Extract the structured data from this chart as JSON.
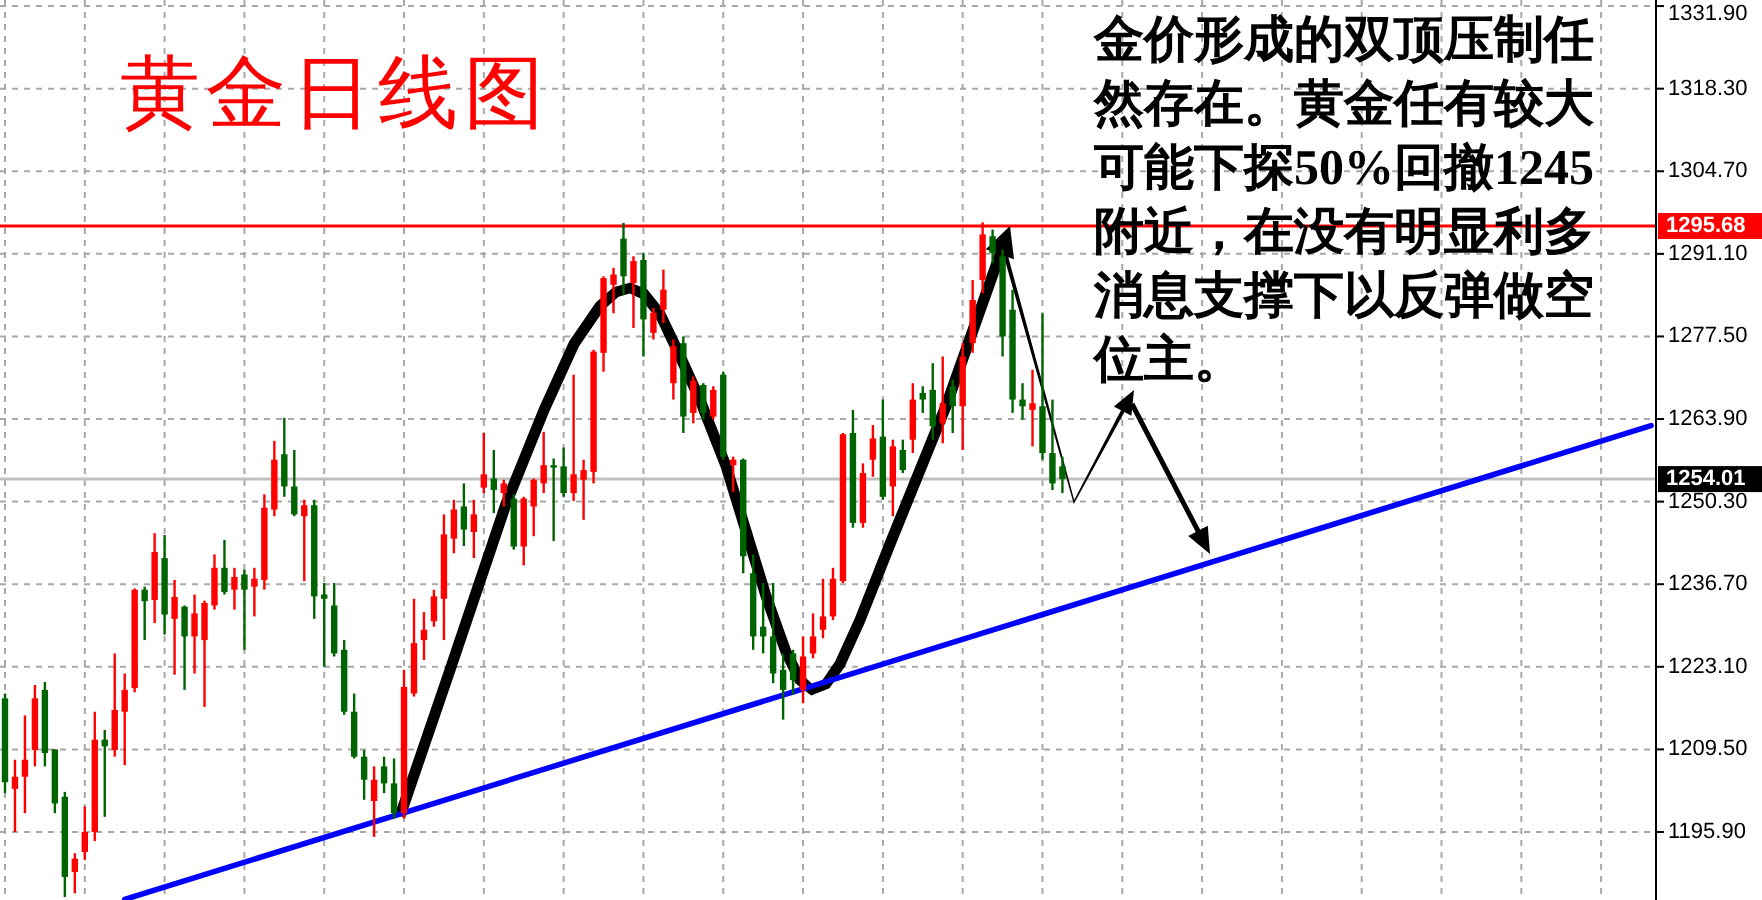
{
  "chart_data": {
    "type": "candlestick",
    "title": "黄金日线图",
    "annotations": [
      "金价形成的双顶压制任然存在。黄金任有较大可能下探50%回撤1245附近，在没有明显利多消息支撑下以反弹做空位主。"
    ],
    "categories": [
      null,
      null,
      null,
      null,
      null,
      null,
      null,
      null,
      null,
      null,
      null,
      null,
      null,
      null,
      null,
      null,
      null,
      null,
      null,
      null,
      null,
      null,
      null,
      null,
      null,
      null,
      null,
      null,
      null,
      null,
      null,
      null,
      null,
      null,
      null,
      null,
      null,
      null,
      null,
      null,
      null,
      null,
      null,
      null,
      null,
      null,
      null,
      null,
      null,
      null,
      null,
      null,
      null,
      null,
      null,
      null,
      null,
      null,
      null,
      null,
      null,
      null,
      null,
      null,
      null,
      null,
      null,
      null,
      null,
      null,
      null,
      null,
      null,
      null,
      null,
      null,
      null,
      null,
      null,
      null,
      null,
      null,
      null,
      null,
      null,
      null,
      null,
      null,
      null,
      null,
      null,
      null,
      null,
      null,
      null,
      null,
      null,
      null,
      null,
      null,
      null,
      null,
      null,
      null,
      null,
      null,
      null,
      null,
      null,
      null,
      null,
      null,
      null,
      null,
      null,
      null,
      null,
      null,
      null,
      null,
      null,
      null,
      null,
      null,
      null,
      null,
      null,
      null,
      null,
      null,
      null,
      null,
      null,
      null,
      null,
      null,
      null,
      null,
      null,
      null,
      null,
      null,
      null,
      null,
      null,
      null,
      null,
      null,
      null,
      null,
      null,
      null,
      null,
      null,
      null,
      null,
      null,
      null,
      null,
      null,
      null,
      null,
      null,
      null,
      null,
      null
    ],
    "ohlc": [
      [
        1217.9,
        1218.7,
        1202.3,
        1204.1
      ],
      [
        1203.0,
        1207.8,
        1195.9,
        1205.0
      ],
      [
        1205.0,
        1215.1,
        1199.0,
        1207.8
      ],
      [
        1209.4,
        1220.1,
        1206.7,
        1217.9
      ],
      [
        1219.3,
        1220.6,
        1206.7,
        1208.9
      ],
      [
        1209.5,
        1209.5,
        1199.0,
        1200.6
      ],
      [
        1201.7,
        1202.5,
        1185.2,
        1188.5
      ],
      [
        1189.3,
        1192.4,
        1185.8,
        1191.5
      ],
      [
        1192.6,
        1200.1,
        1191.3,
        1195.9
      ],
      [
        1195.9,
        1215.7,
        1194.4,
        1211.1
      ],
      [
        1211.1,
        1212.7,
        1198.4,
        1210.0
      ],
      [
        1209.4,
        1225.3,
        1208.3,
        1216.0
      ],
      [
        1215.7,
        1222.0,
        1206.9,
        1219.3
      ],
      [
        1219.6,
        1236.0,
        1218.9,
        1235.8
      ],
      [
        1235.8,
        1236.3,
        1227.5,
        1233.9
      ],
      [
        1234.1,
        1245.1,
        1230.3,
        1242.0
      ],
      [
        1241.0,
        1244.8,
        1228.4,
        1231.7
      ],
      [
        1231.0,
        1237.4,
        1221.8,
        1234.6
      ],
      [
        1233.0,
        1233.2,
        1219.3,
        1228.1
      ],
      [
        1228.1,
        1235.0,
        1222.0,
        1231.9
      ],
      [
        1227.5,
        1234.0,
        1216.5,
        1233.6
      ],
      [
        1233.2,
        1241.6,
        1232.5,
        1239.4
      ],
      [
        1239.4,
        1244.0,
        1235.0,
        1235.4
      ],
      [
        1235.8,
        1239.4,
        1232.5,
        1237.9
      ],
      [
        1238.3,
        1239.1,
        1225.9,
        1235.8
      ],
      [
        1236.3,
        1239.4,
        1231.4,
        1237.6
      ],
      [
        1237.4,
        1251.5,
        1235.8,
        1249.3
      ],
      [
        1249.0,
        1260.3,
        1247.9,
        1257.2
      ],
      [
        1258.1,
        1264.1,
        1251.1,
        1252.8
      ],
      [
        1252.8,
        1258.8,
        1247.9,
        1248.2
      ],
      [
        1247.9,
        1250.6,
        1237.2,
        1249.7
      ],
      [
        1249.7,
        1250.6,
        1231.0,
        1234.7
      ],
      [
        1235.0,
        1236.9,
        1223.1,
        1234.3
      ],
      [
        1233.2,
        1236.9,
        1224.8,
        1225.3
      ],
      [
        1225.9,
        1227.5,
        1215.2,
        1215.7
      ],
      [
        1215.7,
        1218.7,
        1208.0,
        1208.3
      ],
      [
        1208.3,
        1209.4,
        1201.2,
        1204.5
      ],
      [
        1201.0,
        1206.7,
        1195.1,
        1204.5
      ],
      [
        1206.7,
        1208.3,
        1202.3,
        1203.9
      ],
      [
        1203.9,
        1208.0,
        1198.1,
        1199.0
      ],
      [
        1199.0,
        1222.6,
        1198.1,
        1219.8
      ],
      [
        1218.7,
        1234.3,
        1218.2,
        1227.0
      ],
      [
        1227.5,
        1232.1,
        1224.2,
        1229.2
      ],
      [
        1230.6,
        1235.8,
        1229.7,
        1234.7
      ],
      [
        1234.3,
        1248.2,
        1227.5,
        1244.9
      ],
      [
        1244.2,
        1250.6,
        1241.8,
        1249.0
      ],
      [
        1249.5,
        1253.3,
        1243.0,
        1245.7
      ],
      [
        1245.3,
        1250.6,
        1241.0,
        1248.2
      ],
      [
        1252.6,
        1261.6,
        1251.7,
        1254.8
      ],
      [
        1254.1,
        1258.8,
        1248.4,
        1252.2
      ],
      [
        1251.7,
        1253.9,
        1249.5,
        1253.3
      ],
      [
        1250.8,
        1251.5,
        1242.4,
        1242.9
      ],
      [
        1242.9,
        1251.1,
        1239.8,
        1250.8
      ],
      [
        1249.5,
        1254.1,
        1244.6,
        1253.9
      ],
      [
        1253.3,
        1261.8,
        1251.7,
        1256.3
      ],
      [
        1256.3,
        1257.4,
        1243.8,
        1255.9
      ],
      [
        1256.1,
        1259.2,
        1251.1,
        1251.7
      ],
      [
        1251.7,
        1271.2,
        1250.4,
        1254.8
      ],
      [
        1253.9,
        1257.2,
        1247.3,
        1255.5
      ],
      [
        1255.2,
        1275.3,
        1253.3,
        1275.0
      ],
      [
        1274.8,
        1287.4,
        1271.7,
        1287.1
      ],
      [
        1286.0,
        1288.8,
        1281.3,
        1287.7
      ],
      [
        1293.6,
        1296.2,
        1284.4,
        1287.4
      ],
      [
        1286.3,
        1290.7,
        1278.9,
        1289.9
      ],
      [
        1290.1,
        1291.2,
        1274.2,
        1280.3
      ],
      [
        1278.1,
        1282.2,
        1277.0,
        1281.4
      ],
      [
        1281.9,
        1288.5,
        1279.7,
        1285.2
      ],
      [
        1269.8,
        1277.0,
        1267.1,
        1275.9
      ],
      [
        1276.4,
        1277.5,
        1261.6,
        1264.3
      ],
      [
        1264.9,
        1270.9,
        1263.2,
        1270.2
      ],
      [
        1269.5,
        1269.8,
        1263.8,
        1264.9
      ],
      [
        1264.3,
        1269.3,
        1263.8,
        1268.7
      ],
      [
        1271.2,
        1271.7,
        1257.2,
        1257.7
      ],
      [
        1256.3,
        1257.7,
        1251.9,
        1257.2
      ],
      [
        1257.2,
        1257.4,
        1238.5,
        1241.3
      ],
      [
        1238.5,
        1241.6,
        1225.9,
        1228.1
      ],
      [
        1229.7,
        1236.9,
        1225.3,
        1228.1
      ],
      [
        1228.1,
        1236.9,
        1220.4,
        1222.0
      ],
      [
        1222.6,
        1225.3,
        1214.4,
        1219.3
      ],
      [
        1225.3,
        1225.9,
        1218.5,
        1220.9
      ],
      [
        1219.3,
        1228.1,
        1217.1,
        1224.8
      ],
      [
        1225.3,
        1231.9,
        1224.5,
        1228.1
      ],
      [
        1229.2,
        1237.6,
        1227.8,
        1231.4
      ],
      [
        1231.4,
        1239.4,
        1230.8,
        1237.6
      ],
      [
        1237.2,
        1261.6,
        1236.9,
        1261.4
      ],
      [
        1261.6,
        1265.4,
        1246.0,
        1246.8
      ],
      [
        1246.8,
        1256.6,
        1246.0,
        1255.0
      ],
      [
        1257.2,
        1262.9,
        1254.4,
        1260.7
      ],
      [
        1261.0,
        1267.1,
        1250.6,
        1251.1
      ],
      [
        1252.8,
        1260.5,
        1247.9,
        1259.4
      ],
      [
        1258.8,
        1260.5,
        1255.0,
        1255.5
      ],
      [
        1260.5,
        1269.8,
        1258.3,
        1267.1
      ],
      [
        1268.2,
        1269.3,
        1264.9,
        1267.1
      ],
      [
        1268.7,
        1273.1,
        1260.5,
        1262.7
      ],
      [
        1263.2,
        1274.2,
        1259.9,
        1266.5
      ],
      [
        1269.3,
        1270.4,
        1261.6,
        1266.0
      ],
      [
        1266.0,
        1276.4,
        1258.8,
        1274.2
      ],
      [
        1276.4,
        1286.8,
        1274.8,
        1283.5
      ],
      [
        1286.8,
        1296.3,
        1284.6,
        1294.3
      ],
      [
        1294.0,
        1295.1,
        1289.6,
        1291.2
      ],
      [
        1290.7,
        1291.8,
        1274.2,
        1277.5
      ],
      [
        1281.9,
        1285.2,
        1264.9,
        1267.1
      ],
      [
        1267.1,
        1269.8,
        1263.8,
        1266.0
      ],
      [
        1265.4,
        1272.0,
        1259.4,
        1266.5
      ],
      [
        1266.0,
        1281.3,
        1257.2,
        1258.3
      ],
      [
        1258.3,
        1267.1,
        1252.2,
        1253.3
      ],
      [
        1256.1,
        1257.7,
        1251.7,
        1254.0
      ],
      null,
      null,
      null,
      null,
      null,
      null,
      null,
      null,
      null,
      null,
      null,
      null,
      null,
      null,
      null,
      null,
      null,
      null,
      null,
      null,
      null,
      null,
      null,
      null,
      null,
      null,
      null,
      null,
      null,
      null,
      null,
      null,
      null,
      null,
      null,
      null,
      null,
      null,
      null,
      null,
      null,
      null,
      null,
      null,
      null,
      null,
      null,
      null,
      null,
      null,
      null,
      null,
      null,
      null,
      null,
      null,
      null,
      null,
      null
    ],
    "colors": [
      "#006400",
      "#ff0000",
      "#ff0000",
      "#ff0000",
      "#006400",
      "#006400",
      "#006400",
      "#ff0000",
      "#ff0000",
      "#ff0000",
      "#006400",
      "#ff0000",
      "#ff0000",
      "#ff0000",
      "#006400",
      "#ff0000",
      "#006400",
      "#ff0000",
      "#006400",
      "#ff0000",
      "#ff0000",
      "#ff0000",
      "#006400",
      "#ff0000",
      "#006400",
      "#ff0000",
      "#ff0000",
      "#ff0000",
      "#006400",
      "#006400",
      "#ff0000",
      "#006400",
      "#006400",
      "#006400",
      "#006400",
      "#006400",
      "#006400",
      "#ff0000",
      "#006400",
      "#006400",
      "#ff0000",
      "#ff0000",
      "#ff0000",
      "#ff0000",
      "#ff0000",
      "#ff0000",
      "#006400",
      "#ff0000",
      "#ff0000",
      "#006400",
      "#ff0000",
      "#006400",
      "#ff0000",
      "#ff0000",
      "#ff0000",
      "#006400",
      "#006400",
      "#ff0000",
      "#ff0000",
      "#ff0000",
      "#ff0000",
      "#ff0000",
      "#006400",
      "#ff0000",
      "#006400",
      "#ff0000",
      "#ff0000",
      "#ff0000",
      "#006400",
      "#ff0000",
      "#006400",
      "#ff0000",
      "#006400",
      "#ff0000",
      "#006400",
      "#006400",
      "#006400",
      "#006400",
      "#006400",
      "#006400",
      "#ff0000",
      "#ff0000",
      "#ff0000",
      "#ff0000",
      "#ff0000",
      "#006400",
      "#ff0000",
      "#ff0000",
      "#006400",
      "#ff0000",
      "#006400",
      "#ff0000",
      "#006400",
      "#006400",
      "#ff0000",
      "#006400",
      "#ff0000",
      "#ff0000",
      "#ff0000",
      "#006400",
      "#006400",
      "#006400",
      "#006400",
      "#ff0000",
      "#006400",
      "#006400",
      "#006400",
      null,
      null,
      null,
      null,
      null,
      null,
      null,
      null,
      null,
      null,
      null,
      null,
      null,
      null,
      null,
      null,
      null,
      null,
      null,
      null,
      null,
      null,
      null,
      null,
      null,
      null,
      null,
      null,
      null,
      null,
      null,
      null,
      null,
      null,
      null,
      null,
      null,
      null,
      null,
      null,
      null,
      null,
      null,
      null,
      null,
      null,
      null,
      null,
      null,
      null,
      null,
      null,
      null,
      null,
      null,
      null,
      null,
      null,
      null
    ],
    "series": [
      {
        "type": "line",
        "color": "#0000ff",
        "values": [
          null,
          null,
          null,
          null,
          null,
          null,
          null,
          null,
          null,
          null,
          null,
          null,
          1184.8,
          null,
          null,
          null,
          null,
          null,
          null,
          null,
          null,
          null,
          null,
          null,
          null,
          null,
          null,
          null,
          null,
          null,
          null,
          null,
          null,
          null,
          null,
          null,
          null,
          null,
          null,
          null,
          null,
          null,
          null,
          null,
          null,
          null,
          null,
          null,
          null,
          null,
          null,
          null,
          null,
          null,
          null,
          null,
          null,
          null,
          null,
          null,
          null,
          null,
          null,
          null,
          null,
          null,
          null,
          null,
          null,
          null,
          null,
          null,
          null,
          null,
          null,
          null,
          null,
          null,
          null,
          null,
          null,
          null,
          null,
          null,
          null,
          null,
          null,
          null,
          null,
          null,
          null,
          null,
          null,
          null,
          null,
          null,
          null,
          null,
          null,
          null,
          null,
          null,
          null,
          null,
          null,
          null,
          null,
          null,
          null,
          null,
          null,
          null,
          null,
          null,
          null,
          null,
          null,
          null,
          null,
          null,
          null,
          null,
          null,
          null,
          null,
          null,
          null,
          null,
          null,
          null,
          null,
          null,
          null,
          null,
          null,
          null,
          null,
          null,
          null,
          null,
          null,
          null,
          null,
          null,
          null,
          null,
          null,
          null,
          null,
          null,
          null,
          null,
          null,
          null,
          null,
          null,
          null,
          null,
          null,
          null,
          null,
          null,
          null,
          null,
          null,
          1262.8
        ]
      }
    ],
    "ylim": [
      1184.7,
      1332.9
    ],
    "yticks": [
      {
        "value": 1195.9,
        "label": "1195.90"
      },
      {
        "value": 1209.5,
        "label": "1209.50"
      },
      {
        "value": 1223.1,
        "label": "1223.10"
      },
      {
        "value": 1236.7,
        "label": "1236.70"
      },
      {
        "value": 1250.3,
        "label": "1250.30"
      },
      {
        "value": 1263.9,
        "label": "1263.90"
      },
      {
        "value": 1277.5,
        "label": "1277.50"
      },
      {
        "value": 1291.1,
        "label": "1291.10"
      },
      {
        "value": 1304.7,
        "label": "1304.70"
      },
      {
        "value": 1318.3,
        "label": "1318.30"
      },
      {
        "value": 1331.9,
        "label": "1331.90"
      }
    ],
    "ref_lines": [
      {
        "axis": "y",
        "value": 1295.68,
        "label": "1295.68",
        "color": "#ff0000"
      },
      {
        "axis": "y",
        "value": 1254.01,
        "label": "1254.01",
        "color": "#c0c0c0"
      }
    ],
    "grid": true,
    "tick_labels": "y"
  }
}
